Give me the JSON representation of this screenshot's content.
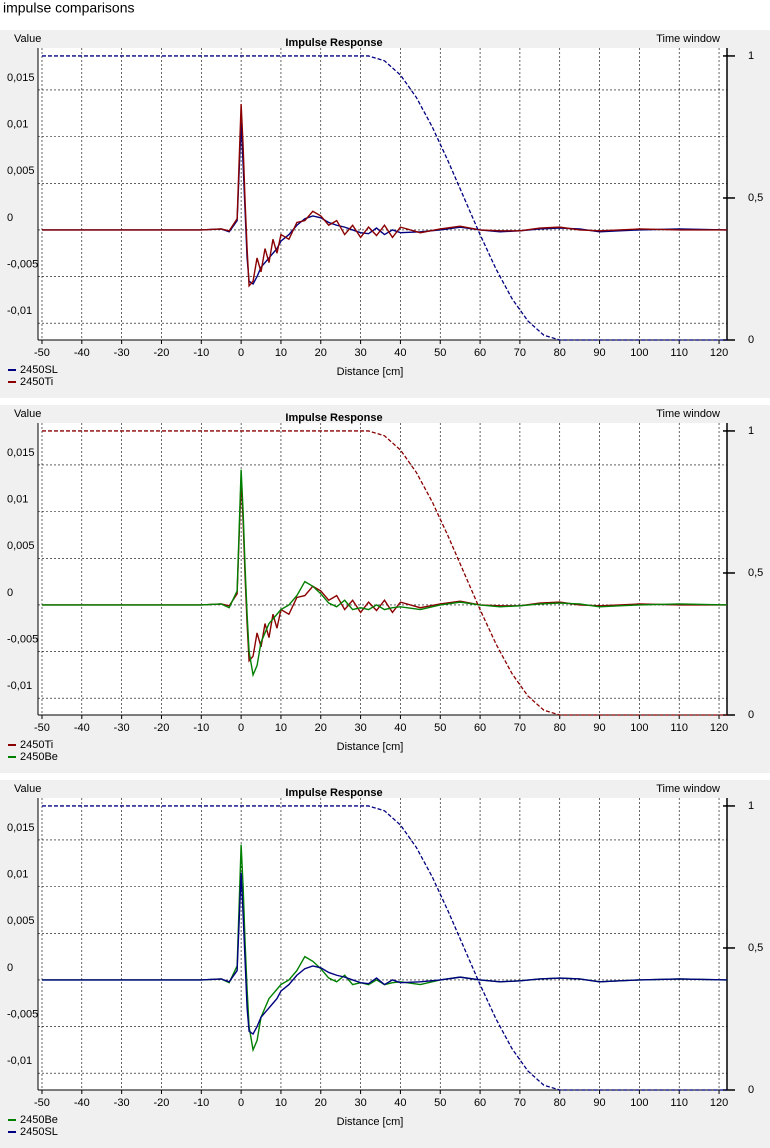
{
  "title": "impulse comparisons",
  "chart_data": [
    {
      "type": "line",
      "title": "Impulse Response",
      "y_label": "Value",
      "y2_label": "Time window",
      "x_label": "Distance [cm]",
      "xlim": [
        -51,
        122
      ],
      "xticks": [
        -50,
        -40,
        -30,
        -20,
        -10,
        0,
        10,
        20,
        30,
        40,
        50,
        60,
        70,
        80,
        90,
        100,
        110,
        120
      ],
      "ylim": [
        -0.0118,
        0.0195
      ],
      "yticks": [
        {
          "value": -0.01,
          "label": "-0,01"
        },
        {
          "value": -0.005,
          "label": "-0,005"
        },
        0,
        {
          "value": 0.005,
          "label": "0,005"
        },
        {
          "value": 0.01,
          "label": "0,01"
        },
        {
          "value": 0.015,
          "label": "0,015"
        }
      ],
      "y2lim": [
        0,
        1.028
      ],
      "y2ticks": [
        0,
        {
          "value": 0.5,
          "label": "0,5"
        },
        1
      ],
      "grid": true,
      "x": [
        -50,
        -40,
        -30,
        -20,
        -10,
        -5,
        -3,
        -1,
        0,
        0.5,
        1,
        1.5,
        2,
        3,
        4,
        5,
        6,
        7,
        8,
        9,
        10,
        12,
        14,
        16,
        18,
        20,
        22,
        24,
        26,
        28,
        30,
        32,
        34,
        36,
        38,
        40,
        45,
        50,
        55,
        60,
        65,
        70,
        75,
        80,
        85,
        90,
        95,
        100,
        110,
        122
      ],
      "series": [
        {
          "name": "2450SL",
          "color": "#000080",
          "values": [
            0,
            0,
            0,
            0,
            0,
            0.0001,
            -0.0002,
            0.001,
            0.0115,
            0.007,
            0.002,
            -0.003,
            -0.0055,
            -0.0058,
            -0.005,
            -0.004,
            -0.0035,
            -0.003,
            -0.0025,
            -0.002,
            -0.0012,
            -0.0005,
            0.0005,
            0.0012,
            0.0015,
            0.0013,
            0.0008,
            0.0005,
            0.0003,
            0,
            -0.0003,
            -0.0004,
            0.0002,
            -0.0005,
            0,
            -0.0003,
            -0.0002,
            0,
            0.0003,
            0,
            -0.0002,
            -0.0001,
            0.0001,
            0.0002,
            0.0001,
            -0.0002,
            -0.0001,
            0,
            0.0001,
            0
          ]
        },
        {
          "name": "2450Ti",
          "color": "#8b0000",
          "values": [
            0,
            0,
            0,
            0,
            0,
            0.0001,
            -0.0001,
            0.0012,
            0.0135,
            0.009,
            0.003,
            -0.002,
            -0.006,
            -0.0055,
            -0.003,
            -0.0045,
            -0.002,
            -0.0035,
            -0.001,
            -0.0025,
            -0.0005,
            -0.001,
            0.0008,
            0.001,
            0.002,
            0.0015,
            0.0005,
            0.001,
            -0.0005,
            0.0005,
            -0.0008,
            0.0003,
            -0.0006,
            0.0005,
            -0.0008,
            0.0003,
            -0.0003,
            0.0001,
            0.0004,
            0,
            -0.0001,
            -0.0001,
            0.0002,
            0.0003,
            0,
            -0.0001,
            0,
            0.0001,
            0,
            0
          ]
        },
        {
          "color": "#000080",
          "axis": "y2",
          "x": [
            -50,
            32,
            36,
            40,
            44,
            48,
            52,
            56,
            60,
            64,
            68,
            72,
            76,
            80,
            122
          ],
          "values": [
            1,
            1,
            0.983,
            0.933,
            0.854,
            0.75,
            0.629,
            0.5,
            0.371,
            0.25,
            0.146,
            0.067,
            0.017,
            0,
            0
          ]
        }
      ]
    },
    {
      "type": "line",
      "title": "Impulse Response",
      "y_label": "Value",
      "y2_label": "Time window",
      "x_label": "Distance [cm]",
      "xlim": [
        -51,
        122
      ],
      "xticks": [
        -50,
        -40,
        -30,
        -20,
        -10,
        0,
        10,
        20,
        30,
        40,
        50,
        60,
        70,
        80,
        90,
        100,
        110,
        120
      ],
      "ylim": [
        -0.0118,
        0.0195
      ],
      "yticks": [
        {
          "value": -0.01,
          "label": "-0,01"
        },
        {
          "value": -0.005,
          "label": "-0,005"
        },
        0,
        {
          "value": 0.005,
          "label": "0,005"
        },
        {
          "value": 0.01,
          "label": "0,01"
        },
        {
          "value": 0.015,
          "label": "0,015"
        }
      ],
      "y2lim": [
        0,
        1.028
      ],
      "y2ticks": [
        0,
        {
          "value": 0.5,
          "label": "0,5"
        },
        1
      ],
      "grid": true,
      "x": [
        -50,
        -40,
        -30,
        -20,
        -10,
        -5,
        -3,
        -1,
        0,
        0.5,
        1,
        1.5,
        2,
        3,
        4,
        5,
        6,
        7,
        8,
        9,
        10,
        12,
        14,
        16,
        18,
        20,
        22,
        24,
        26,
        28,
        30,
        32,
        34,
        36,
        38,
        40,
        45,
        50,
        55,
        60,
        65,
        70,
        75,
        80,
        85,
        90,
        95,
        100,
        110,
        122
      ],
      "series": [
        {
          "name": "2450Ti",
          "color": "#8b0000",
          "values": [
            0,
            0,
            0,
            0,
            0,
            0.0001,
            -0.0001,
            0.0012,
            0.0135,
            0.009,
            0.003,
            -0.002,
            -0.006,
            -0.0055,
            -0.003,
            -0.0045,
            -0.002,
            -0.0035,
            -0.001,
            -0.0025,
            -0.0005,
            -0.001,
            0.0008,
            0.001,
            0.002,
            0.0015,
            0.0005,
            0.001,
            -0.0005,
            0.0005,
            -0.0008,
            0.0003,
            -0.0006,
            0.0005,
            -0.0008,
            0.0003,
            -0.0003,
            0.0001,
            0.0004,
            0,
            -0.0001,
            -0.0001,
            0.0002,
            0.0003,
            0,
            -0.0001,
            0,
            0.0001,
            0,
            0
          ]
        },
        {
          "name": "2450Be",
          "color": "#008000",
          "values": [
            0,
            0,
            0,
            0,
            0,
            0.0001,
            -0.0003,
            0.0015,
            0.0145,
            0.01,
            0.004,
            -0.001,
            -0.005,
            -0.0075,
            -0.0065,
            -0.004,
            -0.003,
            -0.002,
            -0.0015,
            -0.001,
            -0.0005,
            0,
            0.001,
            0.0025,
            0.002,
            0.0012,
            0.0002,
            -0.0002,
            0.0005,
            -0.0005,
            -0.0003,
            -0.0005,
            0,
            -0.0005,
            -0.0003,
            -0.0002,
            -0.0005,
            0,
            0.0003,
            0,
            -0.0002,
            -0.0001,
            0.0001,
            0.0002,
            0.0001,
            -0.0002,
            -0.0001,
            0,
            0.0001,
            0
          ]
        },
        {
          "color": "#8b0000",
          "axis": "y2",
          "x": [
            -50,
            32,
            36,
            40,
            44,
            48,
            52,
            56,
            60,
            64,
            68,
            72,
            76,
            80,
            122
          ],
          "values": [
            1,
            1,
            0.983,
            0.933,
            0.854,
            0.75,
            0.629,
            0.5,
            0.371,
            0.25,
            0.146,
            0.067,
            0.017,
            0,
            0
          ]
        }
      ]
    },
    {
      "type": "line",
      "title": "Impulse Response",
      "y_label": "Value",
      "y2_label": "Time window",
      "x_label": "Distance [cm]",
      "xlim": [
        -51,
        122
      ],
      "xticks": [
        -50,
        -40,
        -30,
        -20,
        -10,
        0,
        10,
        20,
        30,
        40,
        50,
        60,
        70,
        80,
        90,
        100,
        110,
        120
      ],
      "ylim": [
        -0.0118,
        0.0195
      ],
      "yticks": [
        {
          "value": -0.01,
          "label": "-0,01"
        },
        {
          "value": -0.005,
          "label": "-0,005"
        },
        0,
        {
          "value": 0.005,
          "label": "0,005"
        },
        {
          "value": 0.01,
          "label": "0,01"
        },
        {
          "value": 0.015,
          "label": "0,015"
        }
      ],
      "y2lim": [
        0,
        1.028
      ],
      "y2ticks": [
        0,
        {
          "value": 0.5,
          "label": "0,5"
        },
        1
      ],
      "grid": true,
      "x": [
        -50,
        -40,
        -30,
        -20,
        -10,
        -5,
        -3,
        -1,
        0,
        0.5,
        1,
        1.5,
        2,
        3,
        4,
        5,
        6,
        7,
        8,
        9,
        10,
        12,
        14,
        16,
        18,
        20,
        22,
        24,
        26,
        28,
        30,
        32,
        34,
        36,
        38,
        40,
        45,
        50,
        55,
        60,
        65,
        70,
        75,
        80,
        85,
        90,
        95,
        100,
        110,
        122
      ],
      "series": [
        {
          "name": "2450Be",
          "color": "#008000",
          "values": [
            0,
            0,
            0,
            0,
            0,
            0.0001,
            -0.0003,
            0.0015,
            0.0145,
            0.01,
            0.004,
            -0.001,
            -0.005,
            -0.0075,
            -0.0065,
            -0.004,
            -0.003,
            -0.002,
            -0.0015,
            -0.001,
            -0.0005,
            0,
            0.001,
            0.0025,
            0.002,
            0.0012,
            0.0002,
            -0.0002,
            0.0005,
            -0.0005,
            -0.0003,
            -0.0005,
            0,
            -0.0005,
            -0.0003,
            -0.0002,
            -0.0005,
            0,
            0.0003,
            0,
            -0.0002,
            -0.0001,
            0.0001,
            0.0002,
            0.0001,
            -0.0002,
            -0.0001,
            0,
            0.0001,
            0
          ]
        },
        {
          "name": "2450SL",
          "color": "#000080",
          "values": [
            0,
            0,
            0,
            0,
            0,
            0.0001,
            -0.0002,
            0.001,
            0.0115,
            0.007,
            0.002,
            -0.003,
            -0.0055,
            -0.0058,
            -0.005,
            -0.004,
            -0.0035,
            -0.003,
            -0.0025,
            -0.002,
            -0.0012,
            -0.0005,
            0.0005,
            0.0012,
            0.0015,
            0.0013,
            0.0008,
            0.0005,
            0.0003,
            0,
            -0.0003,
            -0.0004,
            0.0002,
            -0.0005,
            0,
            -0.0003,
            -0.0002,
            0,
            0.0003,
            0,
            -0.0002,
            -0.0001,
            0.0001,
            0.0002,
            0.0001,
            -0.0002,
            -0.0001,
            0,
            0.0001,
            0
          ]
        },
        {
          "color": "#000080",
          "axis": "y2",
          "x": [
            -50,
            32,
            36,
            40,
            44,
            48,
            52,
            56,
            60,
            64,
            68,
            72,
            76,
            80,
            122
          ],
          "values": [
            1,
            1,
            0.983,
            0.933,
            0.854,
            0.75,
            0.629,
            0.5,
            0.371,
            0.25,
            0.146,
            0.067,
            0.017,
            0,
            0
          ]
        }
      ]
    }
  ]
}
